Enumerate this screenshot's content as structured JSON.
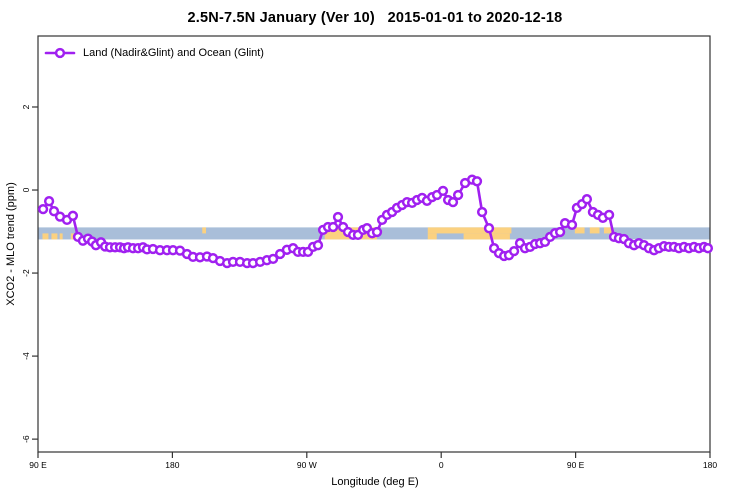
{
  "chart_data": {
    "type": "line",
    "title": "2.5N-7.5N January (Ver 10)   2015-01-01 to 2020-12-18",
    "xlabel": "Longitude (deg E)",
    "ylabel": "XCO2 - MLO trend (ppm)",
    "legend": {
      "label": "Land (Nadir&Glint) and Ocean (Glint)",
      "position": "top-left"
    },
    "line_color": "#A020F0",
    "marker": "open-circle",
    "marker_fill": "#ffffff",
    "axis_color": "#333333",
    "grid": false,
    "xlim": [
      90,
      540
    ],
    "ylim": [
      -6.31,
      3.71
    ],
    "x_ticks": [
      {
        "v": 90,
        "label": "90 E"
      },
      {
        "v": 180,
        "label": "180"
      },
      {
        "v": 270,
        "label": "90 W"
      },
      {
        "v": 360,
        "label": "0"
      },
      {
        "v": 450,
        "label": "90 E"
      },
      {
        "v": 540,
        "label": "180"
      }
    ],
    "y_ticks": [
      {
        "v": 2,
        "label": "2"
      },
      {
        "v": 0,
        "label": "0"
      },
      {
        "v": -2,
        "label": "-2"
      },
      {
        "v": -4,
        "label": "-4"
      },
      {
        "v": -6,
        "label": "-6"
      }
    ],
    "map_strip": {
      "description": "land-ocean strip map of latitude band 2.5N-7.5N",
      "ocean_color": "#A9BED9",
      "land_color": "#FBD180",
      "v_top": -0.9,
      "v_bottom": -1.19,
      "land_segments": [
        {
          "lon1": 93,
          "lon2": 97,
          "half": "bottom"
        },
        {
          "lon1": 99,
          "lon2": 103,
          "half": "bottom"
        },
        {
          "lon1": 104.5,
          "lon2": 106.5,
          "half": "bottom"
        },
        {
          "lon1": 112,
          "lon2": 115.5,
          "half": "bottom"
        },
        {
          "lon1": 200,
          "lon2": 202.5,
          "half": "top"
        },
        {
          "lon1": 282,
          "lon2": 317,
          "half": "full"
        },
        {
          "lon1": 351,
          "lon2": 407,
          "half": "top"
        },
        {
          "lon1": 351,
          "lon2": 357,
          "half": "bottom"
        },
        {
          "lon1": 375,
          "lon2": 406,
          "half": "bottom"
        },
        {
          "lon1": 449.5,
          "lon2": 456,
          "half": "top"
        },
        {
          "lon1": 459.5,
          "lon2": 466,
          "half": "top"
        },
        {
          "lon1": 469,
          "lon2": 474,
          "half": "top"
        }
      ]
    },
    "series": [
      {
        "name": "Land (Nadir&Glint) and Ocean (Glint)",
        "points": [
          [
            93.4,
            -0.46
          ],
          [
            97.4,
            -0.27
          ],
          [
            100.7,
            -0.51
          ],
          [
            104.7,
            -0.64
          ],
          [
            109.4,
            -0.72
          ],
          [
            113.4,
            -0.62
          ],
          [
            116.8,
            -1.13
          ],
          [
            120.1,
            -1.22
          ],
          [
            123.5,
            -1.17
          ],
          [
            126.2,
            -1.24
          ],
          [
            128.8,
            -1.33
          ],
          [
            132.2,
            -1.26
          ],
          [
            134.9,
            -1.36
          ],
          [
            138.2,
            -1.38
          ],
          [
            141.6,
            -1.38
          ],
          [
            144.9,
            -1.38
          ],
          [
            147.6,
            -1.4
          ],
          [
            150.3,
            -1.38
          ],
          [
            153.6,
            -1.4
          ],
          [
            157.0,
            -1.4
          ],
          [
            160.3,
            -1.38
          ],
          [
            163.0,
            -1.43
          ],
          [
            167.0,
            -1.42
          ],
          [
            171.7,
            -1.45
          ],
          [
            176.4,
            -1.45
          ],
          [
            180.4,
            -1.45
          ],
          [
            185.1,
            -1.46
          ],
          [
            189.8,
            -1.54
          ],
          [
            193.8,
            -1.61
          ],
          [
            198.5,
            -1.62
          ],
          [
            203.2,
            -1.6
          ],
          [
            207.2,
            -1.64
          ],
          [
            211.9,
            -1.71
          ],
          [
            216.6,
            -1.76
          ],
          [
            220.6,
            -1.73
          ],
          [
            225.3,
            -1.73
          ],
          [
            230.0,
            -1.76
          ],
          [
            234.0,
            -1.76
          ],
          [
            238.7,
            -1.73
          ],
          [
            243.3,
            -1.69
          ],
          [
            247.4,
            -1.66
          ],
          [
            252.1,
            -1.54
          ],
          [
            256.7,
            -1.44
          ],
          [
            260.8,
            -1.4
          ],
          [
            264.1,
            -1.49
          ],
          [
            267.5,
            -1.49
          ],
          [
            270.8,
            -1.49
          ],
          [
            274.2,
            -1.37
          ],
          [
            277.5,
            -1.33
          ],
          [
            280.9,
            -0.96
          ],
          [
            284.2,
            -0.89
          ],
          [
            287.6,
            -0.89
          ],
          [
            290.9,
            -0.65
          ],
          [
            294.3,
            -0.89
          ],
          [
            297.6,
            -1.01
          ],
          [
            301.0,
            -1.08
          ],
          [
            304.3,
            -1.08
          ],
          [
            307.7,
            -0.96
          ],
          [
            310.3,
            -0.92
          ],
          [
            313.7,
            -1.04
          ],
          [
            317.0,
            -1.01
          ],
          [
            320.4,
            -0.72
          ],
          [
            323.7,
            -0.6
          ],
          [
            327.1,
            -0.53
          ],
          [
            330.4,
            -0.43
          ],
          [
            333.8,
            -0.36
          ],
          [
            337.1,
            -0.29
          ],
          [
            340.5,
            -0.31
          ],
          [
            343.8,
            -0.24
          ],
          [
            347.2,
            -0.19
          ],
          [
            350.5,
            -0.26
          ],
          [
            353.9,
            -0.17
          ],
          [
            357.2,
            -0.12
          ],
          [
            361.2,
            -0.02
          ],
          [
            364.6,
            -0.24
          ],
          [
            367.9,
            -0.29
          ],
          [
            371.3,
            -0.12
          ],
          [
            376.0,
            0.17
          ],
          [
            380.7,
            0.25
          ],
          [
            384.0,
            0.21
          ],
          [
            387.4,
            -0.53
          ],
          [
            392.0,
            -0.92
          ],
          [
            395.4,
            -1.4
          ],
          [
            398.7,
            -1.52
          ],
          [
            402.1,
            -1.59
          ],
          [
            405.4,
            -1.57
          ],
          [
            408.8,
            -1.47
          ],
          [
            412.8,
            -1.28
          ],
          [
            416.1,
            -1.4
          ],
          [
            419.5,
            -1.37
          ],
          [
            422.8,
            -1.3
          ],
          [
            426.2,
            -1.28
          ],
          [
            429.5,
            -1.25
          ],
          [
            432.9,
            -1.13
          ],
          [
            436.2,
            -1.04
          ],
          [
            439.6,
            -1.01
          ],
          [
            442.9,
            -0.8
          ],
          [
            447.6,
            -0.84
          ],
          [
            450.9,
            -0.43
          ],
          [
            454.3,
            -0.34
          ],
          [
            457.6,
            -0.22
          ],
          [
            461.6,
            -0.53
          ],
          [
            465.0,
            -0.6
          ],
          [
            468.3,
            -0.67
          ],
          [
            472.4,
            -0.6
          ],
          [
            475.7,
            -1.13
          ],
          [
            479.0,
            -1.16
          ],
          [
            482.4,
            -1.18
          ],
          [
            485.7,
            -1.28
          ],
          [
            489.1,
            -1.33
          ],
          [
            492.4,
            -1.28
          ],
          [
            495.8,
            -1.33
          ],
          [
            499.1,
            -1.4
          ],
          [
            502.5,
            -1.45
          ],
          [
            505.8,
            -1.4
          ],
          [
            509.2,
            -1.35
          ],
          [
            512.5,
            -1.37
          ],
          [
            515.9,
            -1.37
          ],
          [
            519.2,
            -1.4
          ],
          [
            522.6,
            -1.37
          ],
          [
            525.9,
            -1.4
          ],
          [
            529.3,
            -1.37
          ],
          [
            532.6,
            -1.4
          ],
          [
            536.0,
            -1.37
          ],
          [
            538.6,
            -1.4
          ]
        ]
      }
    ]
  }
}
